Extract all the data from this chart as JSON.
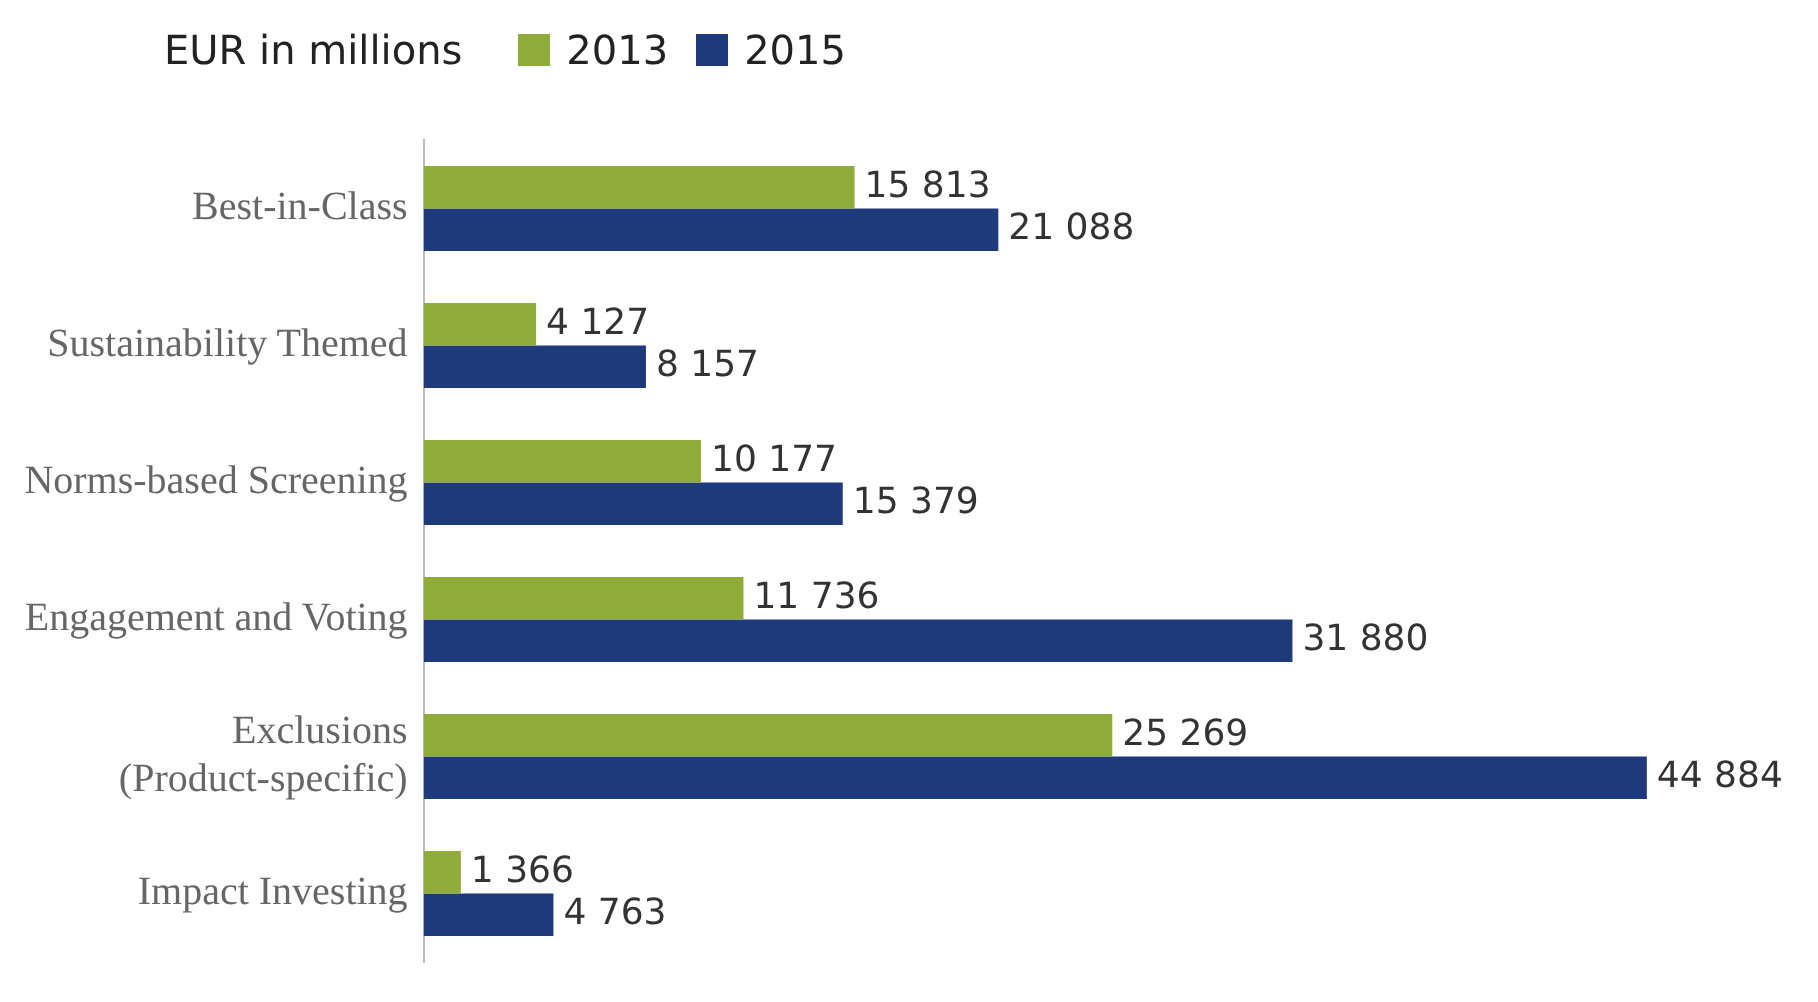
{
  "chart_data": {
    "type": "bar",
    "orientation": "horizontal",
    "legend_title": "EUR in millions",
    "legend": "top left",
    "tick_labels": "y",
    "categories": [
      "Best-in-Class",
      "Sustainability Themed",
      "Norms-based Screening",
      "Engagement and Voting",
      "Exclusions\n(Product-specific)",
      "Impact Investing"
    ],
    "series": [
      {
        "name": "2013",
        "color": "#8fac3a",
        "values": [
          15813,
          4127,
          10177,
          11736,
          25269,
          1366
        ],
        "value_labels": [
          "15 813",
          "4 127",
          "10 177",
          "11 736",
          "25 269",
          "1 366"
        ]
      },
      {
        "name": "2015",
        "color": "#1f3a7a",
        "values": [
          21088,
          8157,
          15379,
          31880,
          44884,
          4763
        ],
        "value_labels": [
          "21 088",
          "8 157",
          "15 379",
          "31 880",
          "44 884",
          "4 763"
        ]
      }
    ]
  }
}
